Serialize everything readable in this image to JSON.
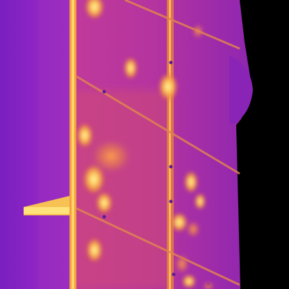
{
  "image": {
    "kind": "thermal-infrared-photo",
    "subject": "",
    "palette": {
      "background": "#000000",
      "cold": "#6a20b8",
      "cool": "#a233c2",
      "mid": "#c23f9c",
      "warm": "#e0605a",
      "hot": "#ffb040",
      "hottest": "#ffe878"
    }
  }
}
